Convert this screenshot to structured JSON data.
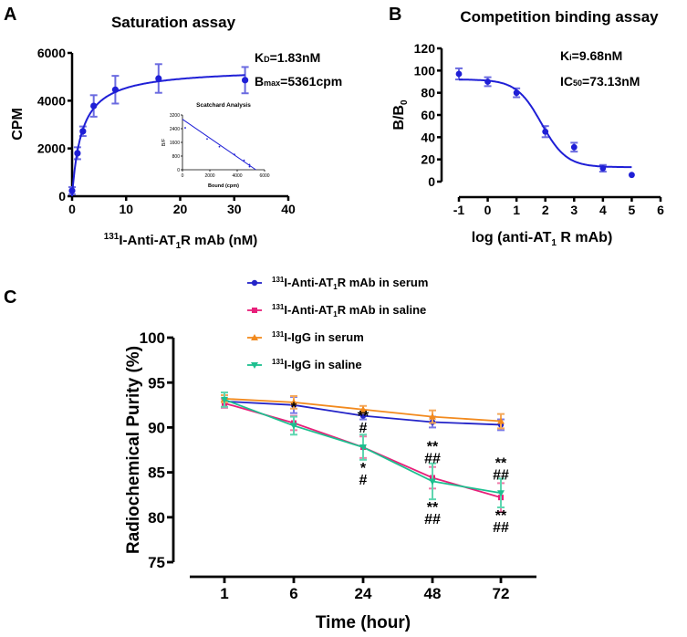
{
  "chart_data": [
    {
      "panel": "A",
      "type": "scatter",
      "title": "Saturation assay",
      "xlabel": {
        "sup": "131",
        "main": "I-Anti-AT",
        "sub": "1",
        "rest": "R mAb (nM)"
      },
      "ylabel": "CPM",
      "xlim": [
        0,
        40
      ],
      "ylim": [
        0,
        6000
      ],
      "xticks": [
        0,
        10,
        20,
        30,
        40
      ],
      "yticks": [
        0,
        2000,
        4000,
        6000
      ],
      "annotations": {
        "kd_main": "K",
        "kd_sub": "D",
        "kd_rest": "=1.83nM",
        "bmax_main": "B",
        "bmax_sub": "max",
        "bmax_rest": "=5361cpm"
      },
      "fit": {
        "Bmax": 5361,
        "Kd": 1.83
      },
      "x": [
        0,
        1,
        2,
        4,
        8,
        16,
        32
      ],
      "y": [
        230,
        1800,
        2720,
        3780,
        4460,
        4930,
        4860
      ],
      "err": [
        150,
        250,
        200,
        450,
        580,
        600,
        550
      ],
      "color": "#1f1fd6",
      "errcolor": "#6b6be0",
      "inset": {
        "title": "Scatchard Analysis",
        "xlabel": "Bound (cpm)",
        "ylabel": "B/F",
        "xlim": [
          0,
          6000
        ],
        "ylim": [
          0,
          3200
        ],
        "xticks": [
          0,
          2000,
          4000,
          6000
        ],
        "yticks": [
          0,
          800,
          1600,
          2400,
          3200
        ],
        "x": [
          200,
          1800,
          2700,
          3800,
          4500,
          4900,
          4900
        ],
        "y": [
          2450,
          1800,
          1350,
          900,
          550,
          300,
          180
        ],
        "line": [
          [
            0,
            2950
          ],
          [
            5361,
            0
          ]
        ]
      }
    },
    {
      "panel": "B",
      "type": "scatter",
      "title": "Competition binding assay",
      "xlabel": {
        "main": "log (anti-AT",
        "sub": "1",
        "rest": " R mAb)"
      },
      "ylabel": {
        "main": "B/B",
        "sub": "0"
      },
      "xlim": [
        -1,
        6
      ],
      "ylim": [
        0,
        120
      ],
      "xticks": [
        -1,
        0,
        1,
        2,
        3,
        4,
        5,
        6
      ],
      "yticks": [
        0,
        20,
        40,
        60,
        80,
        100,
        120
      ],
      "annotations": {
        "ki_main": "K",
        "ki_sub": "i",
        "ki_rest": "=9.68nM",
        "ic_main": "IC",
        "ic_sub": "50",
        "ic_rest": "=73.13nM"
      },
      "fit": {
        "top": 92,
        "bottom": 13,
        "logIC50": 1.864
      },
      "x": [
        -1,
        0,
        1,
        2,
        3,
        4,
        5
      ],
      "y": [
        97,
        90,
        80,
        45,
        31,
        12,
        6
      ],
      "err": [
        5,
        4,
        4,
        5,
        4,
        3,
        0
      ],
      "color": "#1f1fd6",
      "errcolor": "#6b6be0"
    },
    {
      "panel": "C",
      "type": "line",
      "xlabel": "Time (hour)",
      "ylabel": "Radiochemical Purity (%)",
      "categories": [
        "1",
        "6",
        "24",
        "48",
        "72"
      ],
      "ylim": [
        75,
        100
      ],
      "yticks": [
        75,
        80,
        85,
        90,
        95,
        100
      ],
      "series": [
        {
          "name": {
            "sup": "131",
            "main": "I-Anti-AT",
            "sub": "1",
            "rest": "R mAb in serum"
          },
          "color": "#2424c8",
          "errcolor": "#7a7ae6",
          "marker": "circle",
          "values": [
            92.9,
            92.5,
            91.3,
            90.6,
            90.3
          ],
          "err": [
            0.7,
            0.9,
            0.4,
            0.6,
            0.6
          ]
        },
        {
          "name": {
            "sup": "131",
            "main": "I-Anti-AT",
            "sub": "1",
            "rest": "R mAb in saline"
          },
          "color": "#e8207a",
          "errcolor": "#f07aa8",
          "marker": "square",
          "values": [
            92.7,
            90.5,
            87.8,
            84.4,
            82.2
          ],
          "err": [
            0.5,
            0.8,
            1.2,
            1.2,
            1.6
          ]
        },
        {
          "name": {
            "sup": "131",
            "main": "I-IgG in serum",
            "sub": "",
            "rest": ""
          },
          "color": "#f28a1e",
          "errcolor": "#f5a85a",
          "marker": "triangle-up",
          "values": [
            93.2,
            92.8,
            92.0,
            91.2,
            90.7
          ],
          "err": [
            0.4,
            0.7,
            0.4,
            0.7,
            0.8
          ]
        },
        {
          "name": {
            "sup": "131",
            "main": "I-IgG in saline",
            "sub": "",
            "rest": ""
          },
          "color": "#1dbf8f",
          "errcolor": "#5fd6b0",
          "marker": "triangle-down",
          "values": [
            93.1,
            90.2,
            87.8,
            84.0,
            82.7
          ],
          "err": [
            0.8,
            1.0,
            1.4,
            2.0,
            1.6
          ]
        }
      ],
      "significance": [
        {
          "category": "6",
          "above": [
            "*"
          ],
          "below": []
        },
        {
          "category": "24",
          "above": [
            "**",
            "#"
          ],
          "below": [
            "*",
            "#"
          ]
        },
        {
          "category": "48",
          "above": [
            "**",
            "##"
          ],
          "below": [
            "**",
            "##"
          ]
        },
        {
          "category": "72",
          "above": [
            "**",
            "##"
          ],
          "below": [
            "**",
            "##"
          ]
        }
      ]
    }
  ],
  "panel_labels": [
    "A",
    "B",
    "C"
  ]
}
